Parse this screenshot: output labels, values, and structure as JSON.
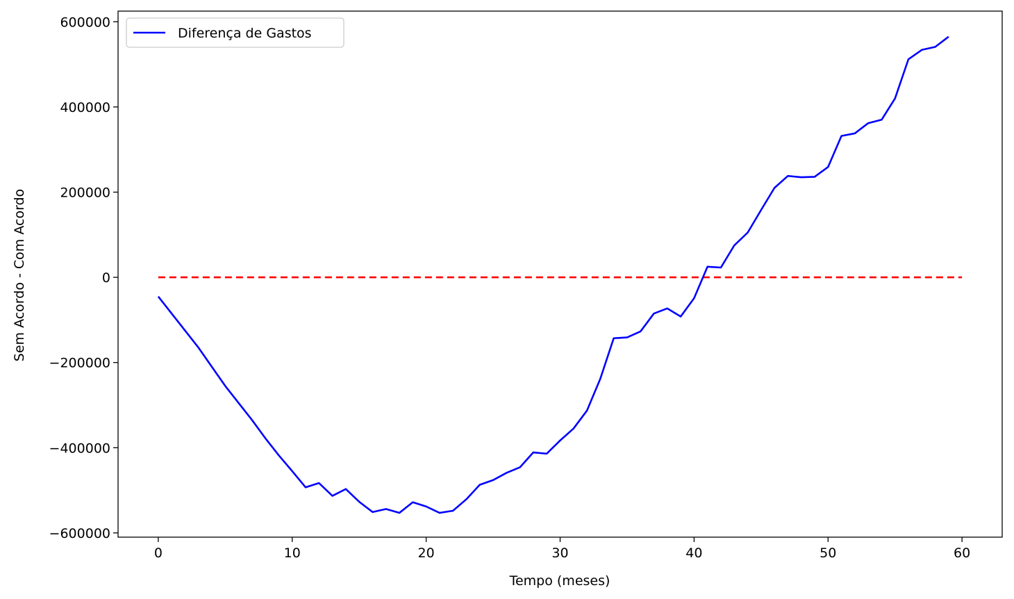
{
  "chart_data": {
    "type": "line",
    "title": "",
    "xlabel": "Tempo (meses)",
    "ylabel": "Sem Acordo - Com Acordo",
    "xlim": [
      -3,
      63
    ],
    "ylim": [
      -610000,
      625000
    ],
    "x_ticks": [
      0,
      10,
      20,
      30,
      40,
      50,
      60
    ],
    "y_ticks": [
      -600000,
      -400000,
      -200000,
      0,
      200000,
      400000,
      600000
    ],
    "x_tick_labels": [
      "0",
      "10",
      "20",
      "30",
      "40",
      "50",
      "60"
    ],
    "y_tick_labels": [
      "−600000",
      "−400000",
      "−200000",
      "0",
      "200000",
      "400000",
      "600000"
    ],
    "grid": false,
    "legend_position": "top-left",
    "series": [
      {
        "name": "Diferença de Gastos",
        "color": "#0000ff",
        "style": "solid",
        "x": [
          0,
          1,
          2,
          3,
          4,
          5,
          6,
          7,
          8,
          9,
          10,
          11,
          12,
          13,
          14,
          15,
          16,
          17,
          18,
          19,
          20,
          21,
          22,
          23,
          24,
          25,
          26,
          27,
          28,
          29,
          30,
          31,
          32,
          33,
          34,
          35,
          36,
          37,
          38,
          39,
          40,
          41,
          42,
          43,
          44,
          45,
          46,
          47,
          48,
          49,
          50,
          51,
          52,
          53,
          54,
          55,
          56,
          57,
          58,
          59
        ],
        "values": [
          -45000,
          -85000,
          -125000,
          -165000,
          -210000,
          -255000,
          -295000,
          -335000,
          -378000,
          -418000,
          -455000,
          -493000,
          -483000,
          -513000,
          -497000,
          -527000,
          -551000,
          -544000,
          -553000,
          -528000,
          -538000,
          -553000,
          -548000,
          -521000,
          -487000,
          -476000,
          -459000,
          -446000,
          -411000,
          -414000,
          -383000,
          -355000,
          -313000,
          -238000,
          -143000,
          -141000,
          -127000,
          -85000,
          -73000,
          -92000,
          -49000,
          25000,
          23000,
          75000,
          105000,
          158000,
          210000,
          238000,
          235000,
          236000,
          259000,
          332000,
          338000,
          362000,
          370000,
          420000,
          512000,
          534000,
          541000,
          565000
        ]
      },
      {
        "name": "",
        "color": "#ff0000",
        "style": "dashed",
        "x": [
          0,
          60
        ],
        "values": [
          0,
          0
        ]
      }
    ]
  }
}
